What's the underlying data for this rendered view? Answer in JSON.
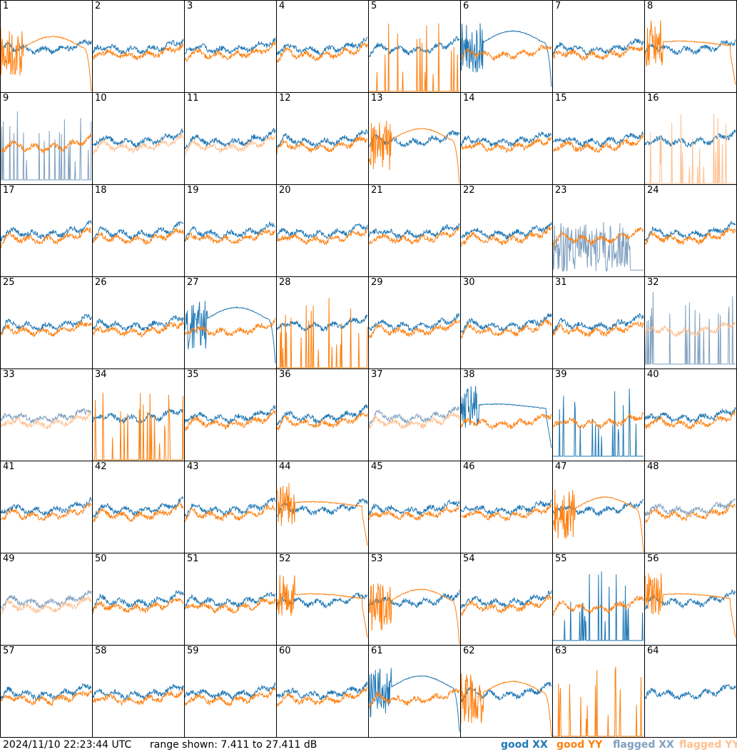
{
  "chart_data": {
    "type": "line",
    "description_units": "dB",
    "timestamp": "2024/11/10 22:23:44 UTC",
    "range_text": "range shown: 7.411 to 27.411 dB",
    "ylim": [
      7.411,
      27.411
    ],
    "grid": {
      "rows": 8,
      "cols": 8
    },
    "legend": [
      {
        "label": "good XX",
        "color": "#1f77b4"
      },
      {
        "label": "good YY",
        "color": "#ff7f0e"
      },
      {
        "label": "flagged XX",
        "color": "#7f9fbf"
      },
      {
        "label": "flagged YY",
        "color": "#ffbf8f"
      }
    ],
    "panels": [
      {
        "label": "1",
        "xx": "good",
        "yy": "good",
        "yyShape": "hump"
      },
      {
        "label": "2",
        "xx": "good",
        "yy": "good"
      },
      {
        "label": "3",
        "xx": "good",
        "yy": "good"
      },
      {
        "label": "4",
        "xx": "good",
        "yy": "good"
      },
      {
        "label": "5",
        "xx": "good",
        "yy": "good",
        "yyShape": "spikes"
      },
      {
        "label": "6",
        "xx": "good",
        "yy": "good",
        "xxShape": "hump"
      },
      {
        "label": "7",
        "xx": "good",
        "yy": "good"
      },
      {
        "label": "8",
        "xx": "good",
        "yy": "good",
        "yyShape": "flat"
      },
      {
        "label": "9",
        "xx": "flagged",
        "yy": "good",
        "xxShape": "spikes"
      },
      {
        "label": "10",
        "xx": "good",
        "yy": "flagged"
      },
      {
        "label": "11",
        "xx": "good",
        "yy": "flagged"
      },
      {
        "label": "12",
        "xx": "good",
        "yy": "good"
      },
      {
        "label": "13",
        "xx": "good",
        "yy": "good",
        "yyShape": "hump"
      },
      {
        "label": "14",
        "xx": "good",
        "yy": "good"
      },
      {
        "label": "15",
        "xx": "good",
        "yy": "good"
      },
      {
        "label": "16",
        "xx": "good",
        "yy": "flagged",
        "yyShape": "spikes"
      },
      {
        "label": "17",
        "xx": "good",
        "yy": "good"
      },
      {
        "label": "18",
        "xx": "good",
        "yy": "good"
      },
      {
        "label": "19",
        "xx": "good",
        "yy": "good"
      },
      {
        "label": "20",
        "xx": "good",
        "yy": "good"
      },
      {
        "label": "21",
        "xx": "good",
        "yy": "good"
      },
      {
        "label": "22",
        "xx": "good",
        "yy": "good"
      },
      {
        "label": "23",
        "xx": "flagged",
        "yy": "good",
        "xxShape": "noisy"
      },
      {
        "label": "24",
        "xx": "good",
        "yy": "good"
      },
      {
        "label": "25",
        "xx": "good",
        "yy": "good"
      },
      {
        "label": "26",
        "xx": "good",
        "yy": "good"
      },
      {
        "label": "27",
        "xx": "good",
        "yy": "good",
        "xxShape": "hump"
      },
      {
        "label": "28",
        "xx": "good",
        "yy": "good",
        "yyShape": "spikes"
      },
      {
        "label": "29",
        "xx": "good",
        "yy": "good"
      },
      {
        "label": "30",
        "xx": "good",
        "yy": "good"
      },
      {
        "label": "31",
        "xx": "good",
        "yy": "good"
      },
      {
        "label": "32",
        "xx": "flagged",
        "yy": "flagged",
        "xxShape": "spikes"
      },
      {
        "label": "33",
        "xx": "flagged",
        "yy": "flagged"
      },
      {
        "label": "34",
        "xx": "good",
        "yy": "good",
        "yyShape": "spikes"
      },
      {
        "label": "35",
        "xx": "good",
        "yy": "good"
      },
      {
        "label": "36",
        "xx": "good",
        "yy": "good"
      },
      {
        "label": "37",
        "xx": "flagged",
        "yy": "flagged"
      },
      {
        "label": "38",
        "xx": "good",
        "yy": "good",
        "xxShape": "flat"
      },
      {
        "label": "39",
        "xx": "good",
        "yy": "good",
        "xxShape": "spikes"
      },
      {
        "label": "40",
        "xx": "good",
        "yy": "good"
      },
      {
        "label": "41",
        "xx": "good",
        "yy": "good"
      },
      {
        "label": "42",
        "xx": "good",
        "yy": "good"
      },
      {
        "label": "43",
        "xx": "good",
        "yy": "good"
      },
      {
        "label": "44",
        "xx": "good",
        "yy": "good",
        "yyShape": "flat"
      },
      {
        "label": "45",
        "xx": "good",
        "yy": "good"
      },
      {
        "label": "46",
        "xx": "good",
        "yy": "good"
      },
      {
        "label": "47",
        "xx": "good",
        "yy": "good",
        "yyShape": "hump"
      },
      {
        "label": "48",
        "xx": "flagged",
        "yy": "good"
      },
      {
        "label": "49",
        "xx": "flagged",
        "yy": "flagged"
      },
      {
        "label": "50",
        "xx": "good",
        "yy": "good"
      },
      {
        "label": "51",
        "xx": "good",
        "yy": "good"
      },
      {
        "label": "52",
        "xx": "good",
        "yy": "good",
        "yyShape": "flat"
      },
      {
        "label": "53",
        "xx": "good",
        "yy": "good",
        "yyShape": "hump"
      },
      {
        "label": "54",
        "xx": "good",
        "yy": "good"
      },
      {
        "label": "55",
        "xx": "good",
        "yy": "good",
        "xxShape": "spikes"
      },
      {
        "label": "56",
        "xx": "good",
        "yy": "good",
        "yyShape": "flat"
      },
      {
        "label": "57",
        "xx": "good",
        "yy": "good"
      },
      {
        "label": "58",
        "xx": "good",
        "yy": "good"
      },
      {
        "label": "59",
        "xx": "good",
        "yy": "good"
      },
      {
        "label": "60",
        "xx": "good",
        "yy": "good"
      },
      {
        "label": "61",
        "xx": "good",
        "yy": "good",
        "xxShape": "hump"
      },
      {
        "label": "62",
        "xx": "good",
        "yy": "good",
        "yyShape": "hump"
      },
      {
        "label": "63",
        "xx": "good",
        "yy": "good",
        "yyShape": "spikes",
        "xxShape": "none"
      },
      {
        "label": "64",
        "xx": "good",
        "yy": "none"
      }
    ]
  }
}
